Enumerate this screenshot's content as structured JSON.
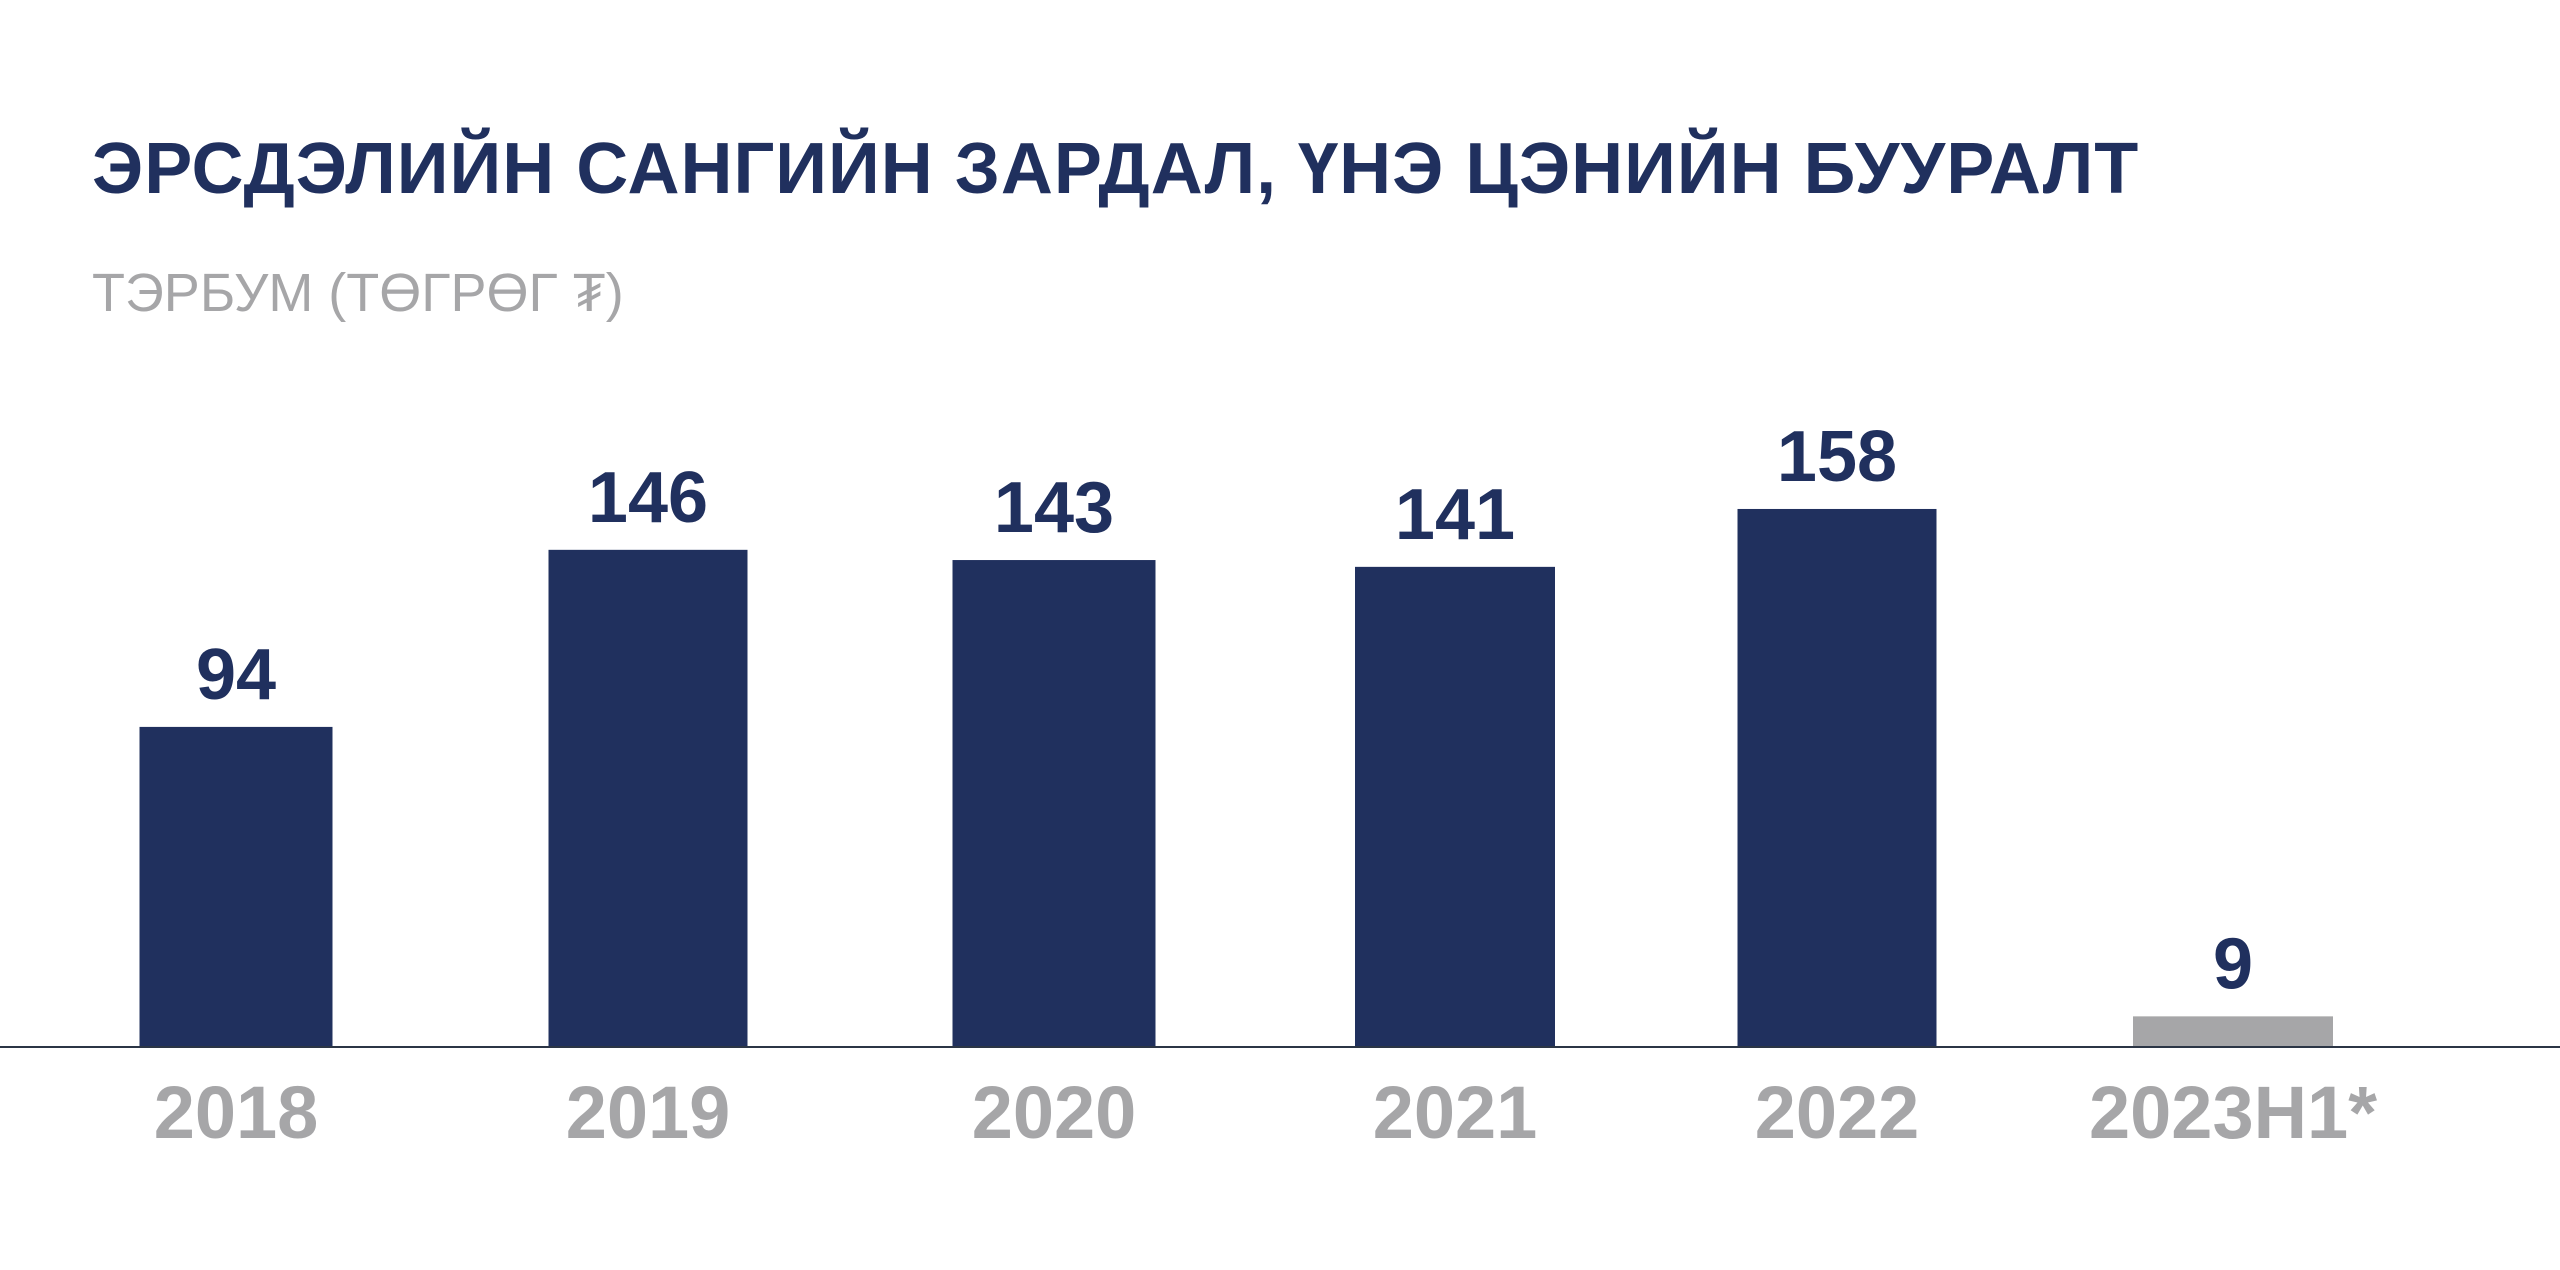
{
  "colors": {
    "primary": "#20305e",
    "muted": "#a6a6a8",
    "axis": "#2b3545",
    "background": "#ffffff"
  },
  "chart_data": {
    "type": "bar",
    "title": "ЭРСДЭЛИЙН САНГИЙН ЗАРДАЛ, ҮНЭ ЦЭНИЙН БУУРАЛТ",
    "subtitle": "ТЭРБУМ (ТӨГРӨГ ₮)",
    "categories": [
      "2018",
      "2019",
      "2020",
      "2021",
      "2022",
      "2023H1*"
    ],
    "values": [
      94,
      146,
      143,
      141,
      158,
      9
    ],
    "data_labels": [
      "94",
      "146",
      "143",
      "141",
      "158",
      "9"
    ],
    "highlight": [
      true,
      true,
      true,
      true,
      true,
      false
    ],
    "xlabel": "",
    "ylabel": "",
    "ylim": [
      0,
      190
    ],
    "grid": false,
    "legend": "none"
  }
}
